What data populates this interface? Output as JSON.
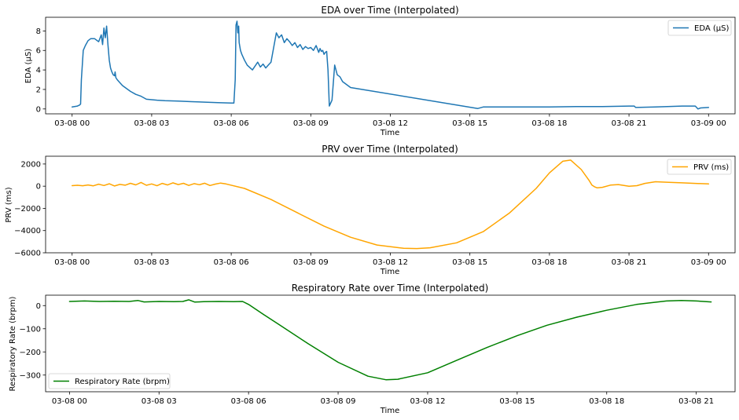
{
  "chart_data": [
    {
      "type": "line",
      "title": "EDA over Time (Interpolated)",
      "xlabel": "Time",
      "ylabel": "EDA (μS)",
      "legend": "top-right",
      "grid": false,
      "xlim": [
        -1,
        25
      ],
      "ylim": [
        -0.5,
        9.4
      ],
      "xticks": [
        0,
        3,
        6,
        9,
        12,
        15,
        18,
        21,
        24
      ],
      "xtick_labels": [
        "03-08 00",
        "03-08 03",
        "03-08 06",
        "03-08 09",
        "03-08 12",
        "03-08 15",
        "03-08 18",
        "03-08 21",
        "03-09 00"
      ],
      "yticks": [
        0,
        2,
        4,
        6,
        8
      ],
      "ytick_labels": [
        "0",
        "2",
        "4",
        "6",
        "8"
      ],
      "series": [
        {
          "name": "EDA (μS)",
          "color": "#1f77b4",
          "x": [
            0.0,
            0.2,
            0.28,
            0.32,
            0.35,
            0.42,
            0.5,
            0.6,
            0.7,
            0.85,
            1.0,
            1.1,
            1.15,
            1.2,
            1.25,
            1.3,
            1.35,
            1.4,
            1.45,
            1.5,
            1.55,
            1.6,
            1.62,
            1.65,
            1.7,
            1.8,
            1.9,
            2.0,
            2.2,
            2.4,
            2.6,
            2.8,
            3.0,
            3.2,
            3.5,
            4.0,
            4.5,
            5.0,
            5.5,
            6.0,
            6.1,
            6.15,
            6.18,
            6.22,
            6.25,
            6.28,
            6.3,
            6.35,
            6.4,
            6.5,
            6.6,
            6.8,
            7.0,
            7.1,
            7.2,
            7.3,
            7.4,
            7.5,
            7.6,
            7.7,
            7.8,
            7.9,
            8.0,
            8.1,
            8.2,
            8.3,
            8.4,
            8.5,
            8.6,
            8.7,
            8.8,
            8.9,
            9.0,
            9.1,
            9.2,
            9.3,
            9.35,
            9.4,
            9.45,
            9.5,
            9.55,
            9.6,
            9.65,
            9.7,
            9.75,
            9.8,
            9.9,
            10.0,
            10.1,
            10.2,
            10.3,
            10.5,
            15.3,
            15.5,
            16.0,
            17.0,
            18.0,
            19.0,
            20.0,
            21.0,
            21.2,
            21.25,
            22.0,
            23.0,
            23.5,
            23.6,
            23.7,
            24.0
          ],
          "y": [
            0.2,
            0.3,
            0.4,
            0.5,
            3.0,
            6.0,
            6.5,
            7.0,
            7.2,
            7.2,
            6.9,
            7.6,
            6.6,
            8.3,
            7.3,
            8.5,
            6.6,
            5.0,
            4.2,
            3.8,
            3.5,
            3.4,
            3.8,
            3.2,
            3.0,
            2.7,
            2.4,
            2.2,
            1.8,
            1.5,
            1.3,
            1.0,
            0.95,
            0.9,
            0.85,
            0.8,
            0.75,
            0.7,
            0.65,
            0.6,
            0.6,
            3.0,
            8.6,
            9.0,
            7.8,
            8.5,
            6.8,
            6.0,
            5.6,
            5.0,
            4.5,
            4.0,
            4.8,
            4.3,
            4.6,
            4.2,
            4.5,
            4.8,
            6.3,
            7.8,
            7.3,
            7.6,
            6.8,
            7.2,
            6.9,
            6.5,
            6.8,
            6.3,
            6.6,
            6.1,
            6.4,
            6.2,
            6.3,
            6.0,
            6.5,
            5.8,
            6.2,
            5.9,
            6.0,
            5.6,
            5.8,
            5.9,
            4.0,
            0.3,
            0.6,
            0.9,
            4.5,
            3.5,
            3.3,
            2.8,
            2.6,
            2.2,
            0.05,
            0.2,
            0.2,
            0.2,
            0.2,
            0.25,
            0.25,
            0.3,
            0.3,
            0.15,
            0.2,
            0.3,
            0.3,
            0.0,
            0.1,
            0.15
          ]
        }
      ]
    },
    {
      "type": "line",
      "title": "PRV over Time (Interpolated)",
      "xlabel": "Time",
      "ylabel": "PRV (ms)",
      "legend": "top-right",
      "grid": false,
      "xlim": [
        -1,
        25
      ],
      "ylim": [
        -6000,
        2700
      ],
      "xticks": [
        0,
        3,
        6,
        9,
        12,
        15,
        18,
        21,
        24
      ],
      "xtick_labels": [
        "03-08 00",
        "03-08 03",
        "03-08 06",
        "03-08 09",
        "03-08 12",
        "03-08 15",
        "03-08 18",
        "03-08 21",
        "03-09 00"
      ],
      "yticks": [
        -6000,
        -4000,
        -2000,
        0,
        2000
      ],
      "ytick_labels": [
        "−6000",
        "−4000",
        "−2000",
        "0",
        "2000"
      ],
      "series": [
        {
          "name": "PRV (ms)",
          "color": "#ffa500",
          "x": [
            0.0,
            0.2,
            0.4,
            0.6,
            0.8,
            1.0,
            1.2,
            1.4,
            1.6,
            1.8,
            2.0,
            2.2,
            2.4,
            2.6,
            2.8,
            3.0,
            3.2,
            3.4,
            3.6,
            3.8,
            4.0,
            4.2,
            4.4,
            4.6,
            4.8,
            5.0,
            5.2,
            5.4,
            5.6,
            5.8,
            6.5,
            7.5,
            8.5,
            9.5,
            10.5,
            11.5,
            12.5,
            13.0,
            13.5,
            14.5,
            15.5,
            16.5,
            17.5,
            18.0,
            18.5,
            18.8,
            19.2,
            19.5,
            19.6,
            19.7,
            19.8,
            20.0,
            20.3,
            20.6,
            21.0,
            21.3,
            21.6,
            22.0,
            22.5,
            23.0,
            23.5,
            24.0
          ],
          "y": [
            50,
            80,
            40,
            110,
            30,
            180,
            60,
            220,
            20,
            160,
            90,
            260,
            120,
            340,
            80,
            200,
            40,
            250,
            110,
            300,
            150,
            260,
            70,
            230,
            130,
            270,
            60,
            190,
            280,
            200,
            -200,
            -1200,
            -2400,
            -3600,
            -4600,
            -5300,
            -5600,
            -5620,
            -5550,
            -5100,
            -4100,
            -2400,
            -200,
            1200,
            2250,
            2350,
            1500,
            500,
            100,
            -50,
            -150,
            -100,
            100,
            150,
            0,
            50,
            250,
            400,
            350,
            300,
            250,
            200
          ]
        }
      ]
    },
    {
      "type": "line",
      "title": "Respiratory Rate over Time (Interpolated)",
      "xlabel": "Time",
      "ylabel": "Respiratory Rate (brpm)",
      "legend": "bottom-left",
      "grid": false,
      "xlim": [
        -0.8,
        22.3
      ],
      "ylim": [
        -372,
        45
      ],
      "xticks": [
        0,
        3,
        6,
        9,
        12,
        15,
        18,
        21
      ],
      "xtick_labels": [
        "03-08 00",
        "03-08 03",
        "03-08 06",
        "03-08 09",
        "03-08 12",
        "03-08 15",
        "03-08 18",
        "03-08 21"
      ],
      "yticks": [
        -300,
        -200,
        -100,
        0
      ],
      "ytick_labels": [
        "−300",
        "−200",
        "−100",
        "0"
      ],
      "series": [
        {
          "name": "Respiratory Rate (brpm)",
          "color": "#008000",
          "x": [
            0.0,
            0.5,
            1.0,
            1.5,
            2.0,
            2.3,
            2.5,
            3.0,
            3.5,
            3.8,
            4.0,
            4.2,
            4.5,
            5.0,
            5.5,
            5.8,
            6.0,
            6.5,
            7.0,
            8.0,
            9.0,
            10.0,
            10.6,
            11.0,
            12.0,
            13.0,
            14.0,
            15.0,
            16.0,
            17.0,
            18.0,
            19.0,
            20.0,
            20.5,
            21.0,
            21.5
          ],
          "y": [
            18,
            20,
            18,
            19,
            18,
            22,
            16,
            18,
            17,
            18,
            25,
            15,
            17,
            18,
            17,
            18,
            5,
            -38,
            -80,
            -165,
            -245,
            -305,
            -320,
            -318,
            -290,
            -235,
            -180,
            -130,
            -85,
            -50,
            -20,
            5,
            20,
            22,
            20,
            16
          ]
        }
      ]
    }
  ]
}
